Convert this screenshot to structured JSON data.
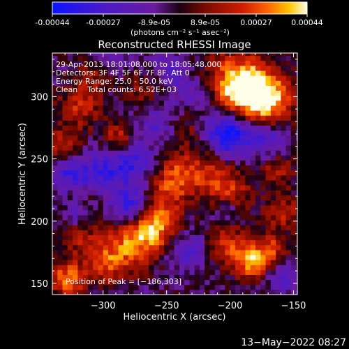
{
  "colorbar": {
    "ticks": [
      "-0.00044",
      "-0.00027",
      "-8.9e-05",
      "8.9e-05",
      "0.00027",
      "0.00044"
    ],
    "units": "(photons cm⁻² s⁻¹ asec⁻²)",
    "colors": [
      "#0a14ff",
      "#4b1ac8",
      "#6a1aa0",
      "#1a0010",
      "#7a0a00",
      "#d21e00",
      "#ff6a00",
      "#ffc400",
      "#ffffe8"
    ]
  },
  "chart_data": {
    "type": "heatmap",
    "title": "Reconstructed RHESSI Image",
    "xlabel": "Heliocentric X (arcsec)",
    "ylabel": "Heliocentric Y (arcsec)",
    "xlim": [
      -340,
      -147
    ],
    "ylim": [
      141,
      335
    ],
    "xticks": [
      -300,
      -250,
      -200,
      -150
    ],
    "yticks": [
      150,
      200,
      250,
      300
    ],
    "xtick_labels": [
      "−300",
      "−250",
      "−200",
      "−150"
    ],
    "ytick_labels": [
      "150",
      "200",
      "250",
      "300"
    ],
    "value_range": [
      -0.00044,
      0.00044
    ],
    "peak": [
      -186,
      303
    ],
    "info_lines": [
      "29-Apr-2013 18:01:08.000 to 18:05:48.000",
      "Detectors: 3F 4F 5F 6F 7F 8F, Att 0",
      "Energy Range: 25.0 - 50.0 keV",
      "Clean    Total counts: 6.52E+03"
    ],
    "peak_label": "Position of Peak = [−186,303]",
    "grid": false
  },
  "footer": {
    "timestamp": "13−May−2022 08:27"
  }
}
